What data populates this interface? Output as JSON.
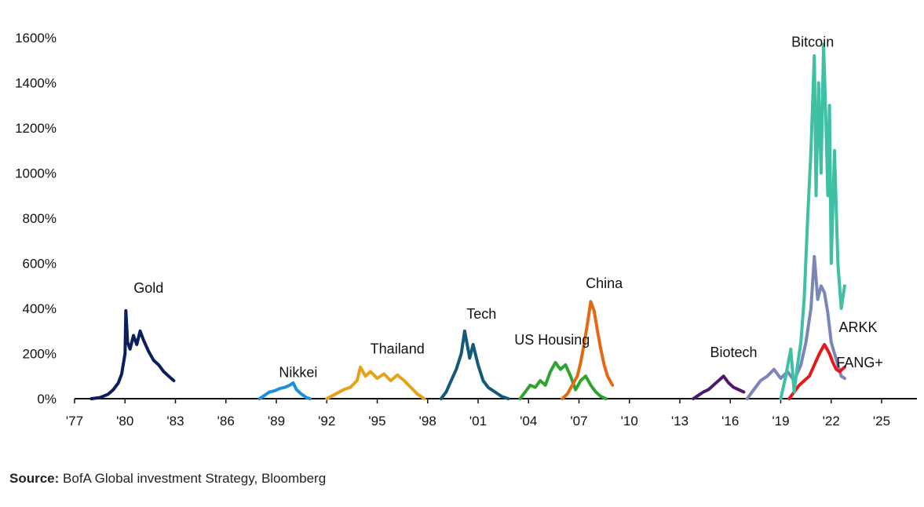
{
  "chart_data": {
    "type": "line",
    "title": "",
    "xlabel": "",
    "ylabel": "",
    "ylim": [
      0,
      1600
    ],
    "xlim": [
      1977,
      2027
    ],
    "y_ticks": [
      0,
      200,
      400,
      600,
      800,
      1000,
      1200,
      1400,
      1600
    ],
    "y_tick_labels": [
      "0%",
      "200%",
      "400%",
      "600%",
      "800%",
      "1000%",
      "1200%",
      "1400%",
      "1600%"
    ],
    "x_ticks": [
      1977,
      1980,
      1983,
      1986,
      1989,
      1992,
      1995,
      1998,
      2001,
      2004,
      2007,
      2010,
      2013,
      2016,
      2019,
      2022,
      2025
    ],
    "x_tick_labels": [
      "'77",
      "'80",
      "'83",
      "'86",
      "'89",
      "'92",
      "'95",
      "'98",
      "'01",
      "'04",
      "'07",
      "'10",
      "'13",
      "'16",
      "'19",
      "'22",
      "'25"
    ],
    "grid": false,
    "series": [
      {
        "name": "Gold",
        "color": "#0b1f5c",
        "x": [
          1978.0,
          1978.5,
          1979.0,
          1979.3,
          1979.6,
          1979.8,
          1980.0,
          1980.05,
          1980.15,
          1980.3,
          1980.5,
          1980.7,
          1980.9,
          1981.1,
          1981.4,
          1981.7,
          1982.0,
          1982.3,
          1982.6,
          1982.9
        ],
        "y": [
          0,
          5,
          20,
          40,
          70,
          110,
          200,
          390,
          250,
          220,
          280,
          240,
          300,
          260,
          210,
          170,
          150,
          120,
          100,
          80
        ]
      },
      {
        "name": "Nikkei",
        "color": "#1e8fdc",
        "x": [
          1988.0,
          1988.3,
          1988.6,
          1988.9,
          1989.2,
          1989.5,
          1989.8,
          1990.0,
          1990.2,
          1990.5,
          1990.8,
          1991.0
        ],
        "y": [
          0,
          15,
          30,
          35,
          45,
          50,
          60,
          70,
          40,
          20,
          5,
          0
        ]
      },
      {
        "name": "Thailand",
        "color": "#e3a21a",
        "x": [
          1992.0,
          1992.5,
          1993.0,
          1993.4,
          1993.8,
          1994.0,
          1994.3,
          1994.6,
          1995.0,
          1995.4,
          1995.8,
          1996.2,
          1996.6,
          1997.0,
          1997.4,
          1997.8
        ],
        "y": [
          0,
          20,
          40,
          50,
          80,
          140,
          100,
          120,
          90,
          110,
          80,
          105,
          80,
          50,
          20,
          0
        ]
      },
      {
        "name": "Tech",
        "color": "#14597a",
        "x": [
          1998.8,
          1999.1,
          1999.4,
          1999.7,
          2000.0,
          2000.2,
          2000.5,
          2000.7,
          2001.0,
          2001.3,
          2001.6,
          2002.0,
          2002.4,
          2002.8
        ],
        "y": [
          0,
          30,
          80,
          130,
          200,
          300,
          180,
          240,
          150,
          80,
          50,
          30,
          10,
          0
        ]
      },
      {
        "name": "US Housing",
        "color": "#2ea32e",
        "x": [
          2003.5,
          2003.8,
          2004.1,
          2004.4,
          2004.7,
          2005.0,
          2005.3,
          2005.6,
          2005.9,
          2006.2,
          2006.5,
          2006.8,
          2007.1,
          2007.4,
          2007.7,
          2008.0,
          2008.3,
          2008.6
        ],
        "y": [
          0,
          30,
          60,
          50,
          80,
          60,
          120,
          160,
          130,
          150,
          100,
          40,
          80,
          100,
          60,
          30,
          10,
          0
        ]
      },
      {
        "name": "China",
        "color": "#e36a14",
        "x": [
          2006.0,
          2006.3,
          2006.6,
          2006.9,
          2007.1,
          2007.3,
          2007.5,
          2007.7,
          2007.9,
          2008.1,
          2008.3,
          2008.5,
          2008.7,
          2009.0
        ],
        "y": [
          0,
          20,
          60,
          100,
          160,
          240,
          330,
          430,
          390,
          300,
          220,
          150,
          100,
          60
        ]
      },
      {
        "name": "Biotech",
        "color": "#4b1a6b",
        "x": [
          2013.8,
          2014.1,
          2014.4,
          2014.7,
          2015.0,
          2015.3,
          2015.6,
          2015.9,
          2016.2,
          2016.5,
          2016.8
        ],
        "y": [
          0,
          15,
          30,
          40,
          60,
          80,
          100,
          70,
          50,
          40,
          30
        ]
      },
      {
        "name": "ARKK",
        "color": "#7a86b8",
        "x": [
          2017.0,
          2017.4,
          2017.8,
          2018.2,
          2018.6,
          2019.0,
          2019.4,
          2019.8,
          2020.2,
          2020.5,
          2020.8,
          2021.0,
          2021.2,
          2021.4,
          2021.6,
          2021.8,
          2022.0,
          2022.2,
          2022.4,
          2022.6,
          2022.8
        ],
        "y": [
          0,
          40,
          80,
          100,
          130,
          90,
          120,
          80,
          150,
          250,
          400,
          630,
          440,
          500,
          470,
          380,
          250,
          200,
          150,
          100,
          90
        ]
      },
      {
        "name": "FANG+",
        "color": "#e31a1a",
        "x": [
          2019.5,
          2019.8,
          2020.1,
          2020.4,
          2020.7,
          2021.0,
          2021.3,
          2021.6,
          2021.9,
          2022.1,
          2022.3,
          2022.5,
          2022.8
        ],
        "y": [
          0,
          30,
          60,
          80,
          100,
          150,
          200,
          240,
          200,
          160,
          130,
          120,
          140
        ]
      },
      {
        "name": "Bitcoin",
        "color": "#3fbfa3",
        "x": [
          2019.0,
          2019.3,
          2019.6,
          2019.8,
          2020.0,
          2020.2,
          2020.4,
          2020.6,
          2020.8,
          2021.0,
          2021.1,
          2021.25,
          2021.4,
          2021.55,
          2021.7,
          2021.8,
          2021.9,
          2022.0,
          2022.2,
          2022.4,
          2022.6,
          2022.8
        ],
        "y": [
          0,
          100,
          220,
          30,
          150,
          250,
          450,
          800,
          1100,
          1520,
          900,
          1400,
          1000,
          1570,
          1200,
          900,
          1300,
          600,
          1100,
          600,
          400,
          500
        ]
      }
    ],
    "annotations": [
      {
        "text": "Gold",
        "x": 1981.4,
        "y": 470
      },
      {
        "text": "Nikkei",
        "x": 1990.3,
        "y": 95
      },
      {
        "text": "Thailand",
        "x": 1996.2,
        "y": 200
      },
      {
        "text": "Tech",
        "x": 2001.2,
        "y": 355
      },
      {
        "text": "US Housing",
        "x": 2005.4,
        "y": 240
      },
      {
        "text": "China",
        "x": 2008.5,
        "y": 490
      },
      {
        "text": "Biotech",
        "x": 2016.2,
        "y": 185
      },
      {
        "text": "Bitcoin",
        "x": 2020.9,
        "y": 1560
      },
      {
        "text": "ARKK",
        "x": 2023.6,
        "y": 295
      },
      {
        "text": "FANG+",
        "x": 2023.7,
        "y": 140
      }
    ]
  },
  "source": {
    "label": "Source:",
    "text": " BofA Global investment Strategy, Bloomberg"
  }
}
